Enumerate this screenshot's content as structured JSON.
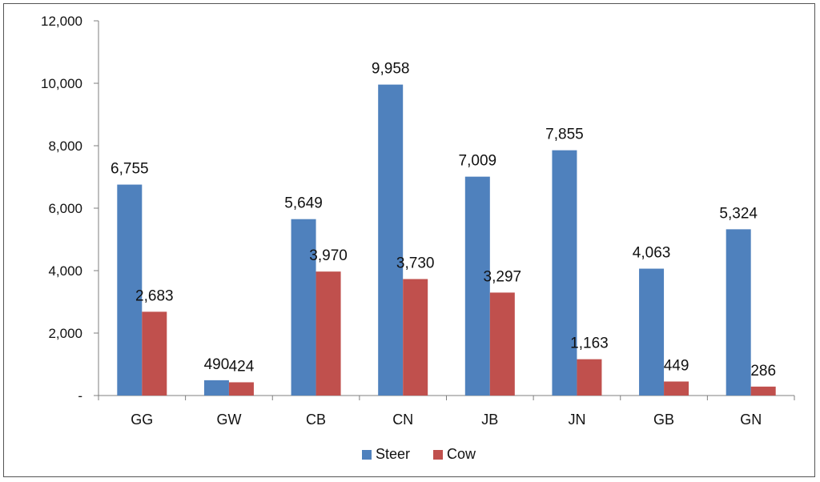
{
  "chart_data": {
    "type": "bar",
    "categories": [
      "GG",
      "GW",
      "CB",
      "CN",
      "JB",
      "JN",
      "GB",
      "GN"
    ],
    "series": [
      {
        "name": "Steer",
        "color": "#4F81BD",
        "values": [
          6755,
          490,
          5649,
          9958,
          7009,
          7855,
          4063,
          5324
        ]
      },
      {
        "name": "Cow",
        "color": "#C0504D",
        "values": [
          2683,
          424,
          3970,
          3730,
          3297,
          1163,
          449,
          286
        ]
      }
    ],
    "data_labels": {
      "Steer": [
        "6,755",
        "490",
        "5,649",
        "9,958",
        "7,009",
        "7,855",
        "4,063",
        "5,324"
      ],
      "Cow": [
        "2,683",
        "424",
        "3,970",
        "3,730",
        "3,297",
        "1,163",
        "449",
        "286"
      ]
    },
    "yticks": [
      0,
      2000,
      4000,
      6000,
      8000,
      10000,
      12000
    ],
    "ytick_labels": [
      "-",
      "2,000",
      "4,000",
      "6,000",
      "8,000",
      "10,000",
      "12,000"
    ],
    "ylim": [
      0,
      12000
    ],
    "grid": false,
    "legend_position": "bottom"
  }
}
